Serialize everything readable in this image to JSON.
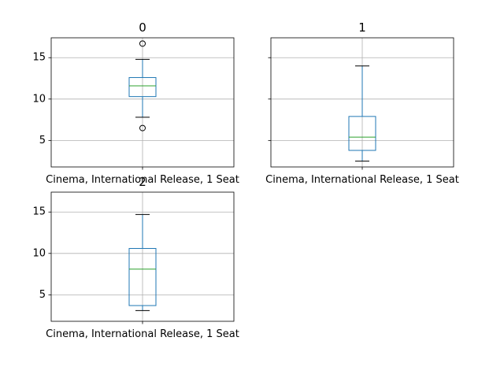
{
  "colors": {
    "box": "#1f77b4",
    "median": "#2ca02c",
    "whisker": "#1f77b4",
    "cap": "#000000",
    "grid": "#b0b0b0",
    "flier": "#000000",
    "frame": "#000000"
  },
  "chart_data": [
    {
      "type": "box",
      "title": "0",
      "categories": [
        "Cinema, International Release, 1 Seat"
      ],
      "ylim": [
        1.8,
        17.4
      ],
      "yticks": [
        5,
        10,
        15
      ],
      "show_ytick_labels": true,
      "grid": true,
      "box": {
        "whisker_low": 7.8,
        "q1": 10.3,
        "median": 11.6,
        "q3": 12.6,
        "whisker_high": 14.8,
        "fliers": [
          16.7,
          6.5
        ]
      }
    },
    {
      "type": "box",
      "title": "1",
      "categories": [
        "Cinema, International Release, 1 Seat"
      ],
      "ylim": [
        1.8,
        17.4
      ],
      "yticks": [
        5,
        10,
        15
      ],
      "show_ytick_labels": false,
      "grid": true,
      "box": {
        "whisker_low": 2.5,
        "q1": 3.8,
        "median": 5.4,
        "q3": 7.9,
        "whisker_high": 14.0,
        "fliers": []
      }
    },
    {
      "type": "box",
      "title": "2",
      "categories": [
        "Cinema, International Release, 1 Seat"
      ],
      "ylim": [
        1.8,
        17.4
      ],
      "yticks": [
        5,
        10,
        15
      ],
      "show_ytick_labels": true,
      "grid": true,
      "box": {
        "whisker_low": 3.1,
        "q1": 3.7,
        "median": 8.1,
        "q3": 10.6,
        "whisker_high": 14.7,
        "fliers": []
      }
    }
  ]
}
